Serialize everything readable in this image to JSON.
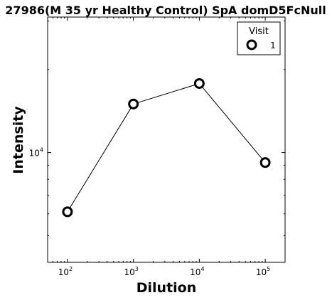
{
  "chart_data": {
    "type": "line",
    "title": "27986(M 35 yr Healthy Control) SpA domD5FcNull",
    "xlabel": "Dilution",
    "ylabel": "Intensity",
    "x_scale": "log",
    "y_scale": "log",
    "xlim": [
      50,
      200000
    ],
    "ylim": [
      4000,
      31000
    ],
    "x_ticks": [
      {
        "value": 100,
        "base": "10",
        "exp": "2"
      },
      {
        "value": 1000,
        "base": "10",
        "exp": "3"
      },
      {
        "value": 10000,
        "base": "10",
        "exp": "4"
      },
      {
        "value": 100000,
        "base": "10",
        "exp": "5"
      }
    ],
    "y_ticks": [
      {
        "value": 10000,
        "base": "10",
        "exp": "4"
      }
    ],
    "legend": {
      "title": "Visit",
      "position": "top-right",
      "entries": [
        "1"
      ]
    },
    "series": [
      {
        "name": "1",
        "marker": "open-circle",
        "color": "#000000",
        "x": [
          100,
          1000,
          10000,
          100000
        ],
        "y": [
          6100,
          15000,
          17800,
          9200
        ]
      }
    ]
  }
}
